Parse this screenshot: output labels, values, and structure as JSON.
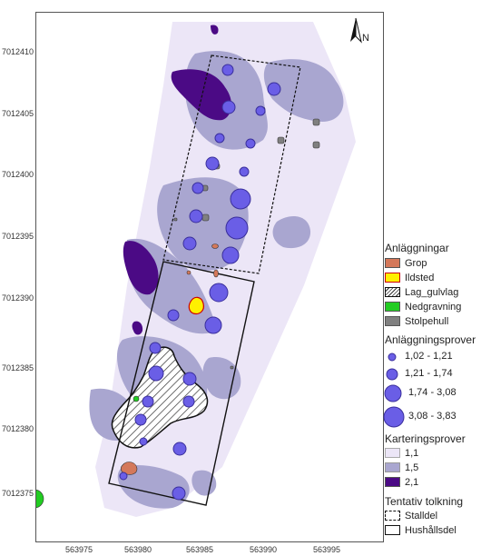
{
  "y_axis_labels": [
    "7012410",
    "7012405",
    "7012400",
    "7012395",
    "7012390",
    "7012385",
    "7012380",
    "7012375"
  ],
  "x_axis_labels": [
    "563975",
    "563980",
    "563985",
    "563990",
    "563995"
  ],
  "north_arrow": {
    "label": "N",
    "icon": "north-arrow-icon"
  },
  "legend": {
    "anlaggningar": {
      "title": "Anläggningar",
      "items": [
        {
          "label": "Grop",
          "color": "#d4785a"
        },
        {
          "label": "Ildsted",
          "color": "#fff000"
        },
        {
          "label": "Lag_gulvlag",
          "color": "hatch"
        },
        {
          "label": "Nedgravning",
          "color": "#22cc22"
        },
        {
          "label": "Stolpehull",
          "color": "#808080"
        }
      ]
    },
    "anlaggningsprover": {
      "title": "Anläggningsprover",
      "items": [
        {
          "label": "1,02 - 1,21"
        },
        {
          "label": "1,21 - 1,74"
        },
        {
          "label": "1,74 - 3,08"
        },
        {
          "label": "3,08 - 3,83"
        }
      ]
    },
    "karteringsprover": {
      "title": "Karteringsprover",
      "items": [
        {
          "label": "1,1",
          "color": "#ece6f7"
        },
        {
          "label": "1,5",
          "color": "#a9a6d0"
        },
        {
          "label": "2,1",
          "color": "#4b0a85"
        }
      ]
    },
    "tolkning": {
      "title": "Tentativ tolkning",
      "items": [
        {
          "label": "Stalldel"
        },
        {
          "label": "Hushållsdel"
        }
      ]
    }
  }
}
